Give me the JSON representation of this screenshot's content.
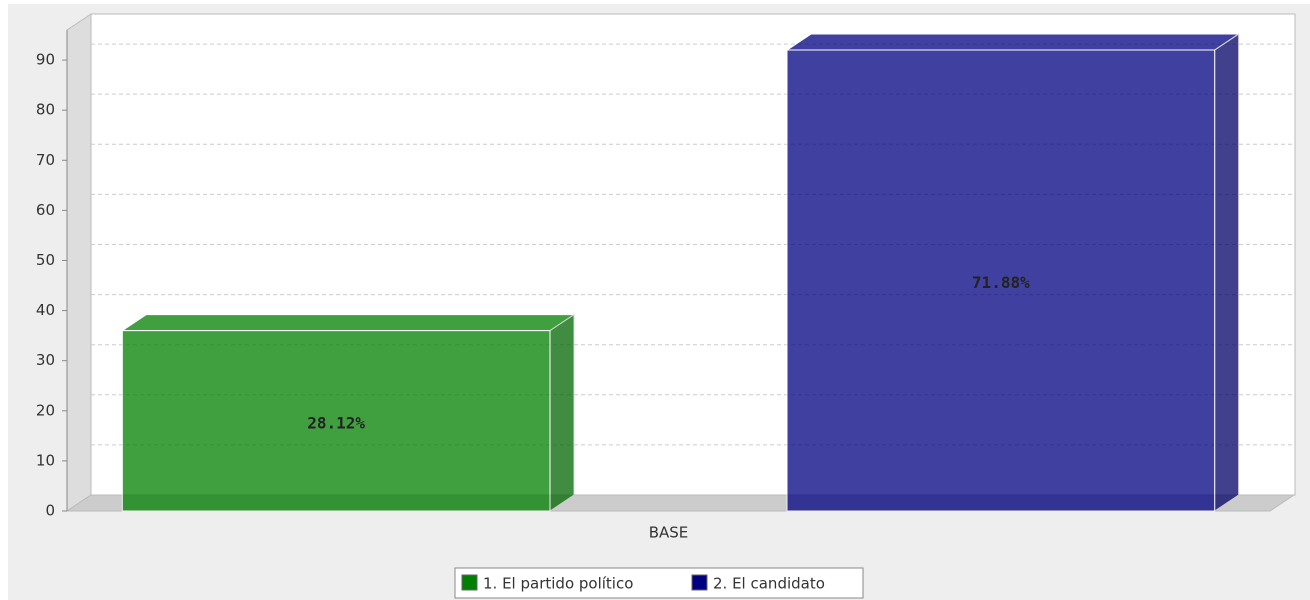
{
  "chart_data": {
    "type": "bar3d",
    "categories": [
      "BASE"
    ],
    "series": [
      {
        "name": "1. El partido político",
        "color": "#008000",
        "values": [
          36
        ]
      },
      {
        "name": "2. El candidato",
        "color": "#000080",
        "values": [
          92
        ]
      }
    ],
    "annotations": [
      "28.12%",
      "71.88%"
    ],
    "ylim": [
      0,
      96
    ],
    "yticks": [
      0,
      10,
      20,
      30,
      40,
      50,
      60,
      70,
      80,
      90
    ],
    "grid": true,
    "legend": "bottom"
  }
}
